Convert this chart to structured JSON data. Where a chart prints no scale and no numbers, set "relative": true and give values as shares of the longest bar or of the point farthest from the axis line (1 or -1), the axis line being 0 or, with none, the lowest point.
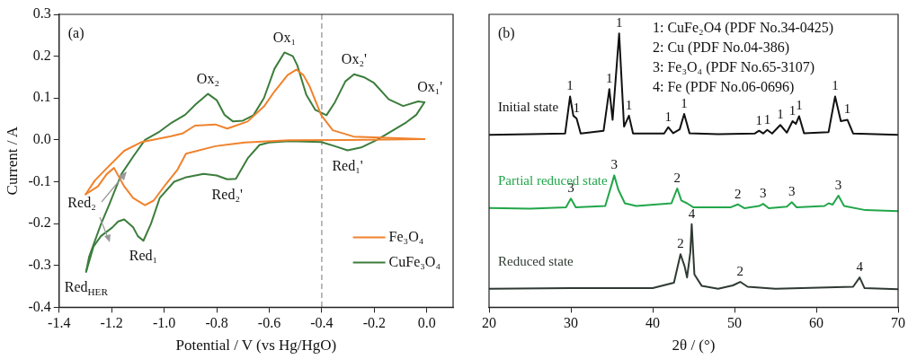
{
  "chart_data": [
    {
      "type": "line",
      "xlabel": "Potential / V (vs Hg/HgO)",
      "ylabel": "Current / A",
      "xlim": [
        -1.4,
        0.1
      ],
      "ylim": [
        -0.4,
        0.3
      ],
      "xticks": [
        -1.4,
        -1.2,
        {
          "value": -1,
          "label": "-1.0"
        },
        -0.8,
        -0.6,
        -0.4,
        -0.2,
        {
          "value": 0,
          "label": "0.0"
        }
      ],
      "yticks": [
        -0.4,
        -0.3,
        -0.2,
        -0.1,
        {
          "value": 0,
          "label": "0.0"
        },
        0.1,
        0.2,
        0.3
      ],
      "grid": false,
      "legend": "bottom right",
      "line_style": "solid",
      "marker": "none",
      "ref_lines": [
        {
          "axis": "x",
          "value": -0.4,
          "color": "#8c8c8c",
          "line_style": "dashed"
        }
      ],
      "series": [
        {
          "name": "Fe₃O₄",
          "color": "#f0822c",
          "x": [
            -1.299,
            -1.264,
            -1.219,
            -1.152,
            -1.085,
            -0.973,
            -0.928,
            -0.883,
            -0.805,
            -0.76,
            -0.682,
            -0.62,
            -0.581,
            -0.53,
            -0.497,
            -0.47,
            -0.447,
            -0.402,
            -0.358,
            -0.279,
            -0.009
          ],
          "values": [
            -0.13,
            -0.097,
            -0.068,
            -0.026,
            -0.005,
            0.009,
            0.016,
            0.034,
            0.037,
            0.027,
            0.044,
            0.08,
            0.115,
            0.155,
            0.168,
            0.155,
            0.129,
            0.059,
            0.023,
            0.008,
            0.002
          ]
        },
        {
          "color": "#f0822c",
          "x": [
            -1.299,
            -1.252,
            -1.219,
            -1.191,
            -1.152,
            -1.118,
            -1.073,
            -1.04,
            -0.995,
            -0.95,
            -0.917,
            -0.805,
            -0.693,
            -0.525,
            -0.302,
            -0.009
          ],
          "values": [
            -0.13,
            -0.111,
            -0.082,
            -0.067,
            -0.111,
            -0.139,
            -0.156,
            -0.145,
            -0.107,
            -0.072,
            -0.033,
            -0.015,
            -0.006,
            -0.001,
            0,
            0.002
          ]
        },
        {
          "name": "CuFe₃O₄",
          "color": "#3c7d3c",
          "x": [
            -1.297,
            -1.286,
            -1.241,
            -1.208,
            -1.163,
            -1.118,
            -1.073,
            -1.017,
            -0.972,
            -0.92,
            -0.88,
            -0.833,
            -0.8,
            -0.77,
            -0.738,
            -0.7,
            -0.66,
            -0.62,
            -0.58,
            -0.542,
            -0.51,
            -0.493,
            -0.459,
            -0.425,
            -0.382,
            -0.35,
            -0.31,
            -0.277,
            -0.24,
            -0.201,
            -0.145,
            -0.09,
            -0.033,
            -0.009
          ],
          "values": [
            -0.315,
            -0.28,
            -0.202,
            -0.153,
            -0.082,
            -0.04,
            0,
            0.02,
            0.041,
            0.06,
            0.085,
            0.11,
            0.095,
            0.06,
            0.044,
            0.046,
            0.059,
            0.1,
            0.17,
            0.209,
            0.2,
            0.178,
            0.108,
            0.072,
            0.059,
            0.09,
            0.14,
            0.157,
            0.15,
            0.136,
            0.097,
            0.081,
            0.092,
            0.09
          ]
        },
        {
          "color": "#3c7d3c",
          "x": [
            -1.297,
            -1.269,
            -1.241,
            -1.197,
            -1.175,
            -1.152,
            -1.118,
            -1.1,
            -1.079,
            -1.05,
            -1.017,
            -0.962,
            -0.92,
            -0.85,
            -0.8,
            -0.76,
            -0.727,
            -0.682,
            -0.637,
            -0.6,
            -0.525,
            -0.402,
            -0.35,
            -0.302,
            -0.25,
            -0.19,
            -0.078,
            -0.04,
            -0.009
          ],
          "values": [
            -0.315,
            -0.255,
            -0.23,
            -0.209,
            -0.195,
            -0.19,
            -0.209,
            -0.23,
            -0.241,
            -0.2,
            -0.139,
            -0.1,
            -0.09,
            -0.081,
            -0.085,
            -0.094,
            -0.093,
            -0.044,
            -0.012,
            -0.006,
            -0.003,
            -0.005,
            -0.015,
            -0.025,
            -0.018,
            0,
            0.042,
            0.06,
            0.09
          ]
        }
      ],
      "annotations": [
        "(a)",
        "Red₂",
        {
          "text": "Ox₁",
          "x": -0.542,
          "y": 0.209
        },
        {
          "text": "Ox₂",
          "x": -0.833,
          "y": 0.11
        },
        {
          "text": "Ox₂'",
          "x": -0.277,
          "y": 0.157
        },
        {
          "text": "Ox₁'",
          "x": -0.009,
          "y": 0.09
        },
        {
          "text": "Red₁'",
          "x": -0.302,
          "y": -0.025
        },
        {
          "text": "Red₂'",
          "x": -0.76,
          "y": -0.094
        },
        {
          "text": "Red₁",
          "x": -1.079,
          "y": -0.241
        },
        {
          "text": "Red$_{HER}$",
          "x": -1.297,
          "y": -0.315
        }
      ]
    },
    {
      "type": "line",
      "relative": true,
      "xlabel": "2θ / (°)",
      "xlim": [
        20,
        70
      ],
      "xticks": [
        20,
        30,
        40,
        50,
        60,
        70
      ],
      "grid": false,
      "legend": false,
      "line_style": "solid",
      "marker": "none",
      "series": [
        {
          "name": "Initial state",
          "color": "#111111",
          "x": [
            20,
            25,
            29.3,
            29.9,
            30.3,
            30.7,
            31.2,
            34.0,
            34.7,
            35.1,
            35.9,
            36.5,
            37.1,
            37.6,
            41.4,
            41.9,
            42.5,
            43.3,
            43.85,
            44.5,
            48,
            52.5,
            53.0,
            53.5,
            54.0,
            54.6,
            55.6,
            56.4,
            57.1,
            57.5,
            57.9,
            58.5,
            61.5,
            62.3,
            63.0,
            63.8,
            64.5,
            70
          ],
          "values": [
            0.63,
            0.632,
            0.635,
            0.77,
            0.7,
            0.69,
            0.635,
            0.645,
            0.797,
            0.685,
            1.0,
            0.66,
            0.7,
            0.635,
            0.635,
            0.658,
            0.636,
            0.65,
            0.706,
            0.636,
            0.632,
            0.635,
            0.645,
            0.635,
            0.648,
            0.635,
            0.666,
            0.638,
            0.68,
            0.67,
            0.698,
            0.636,
            0.64,
            0.77,
            0.68,
            0.685,
            0.635,
            0.63
          ]
        },
        {
          "name": "Partial reduced state",
          "color": "#22a64a",
          "x": [
            20,
            25,
            29.4,
            30.0,
            30.6,
            34.2,
            35.0,
            35.3,
            35.8,
            36.6,
            38,
            42.3,
            43.0,
            43.5,
            44.2,
            45,
            49.5,
            50.4,
            51.2,
            53.0,
            53.5,
            54.2,
            56.4,
            57.0,
            57.6,
            61.0,
            61.5,
            62.0,
            62.7,
            63.4,
            66,
            70
          ],
          "values": [
            0.363,
            0.36,
            0.365,
            0.397,
            0.365,
            0.37,
            0.45,
            0.482,
            0.43,
            0.38,
            0.37,
            0.38,
            0.434,
            0.39,
            0.38,
            0.365,
            0.365,
            0.376,
            0.362,
            0.37,
            0.378,
            0.362,
            0.368,
            0.384,
            0.365,
            0.37,
            0.38,
            0.375,
            0.408,
            0.37,
            0.355,
            0.351
          ]
        },
        {
          "name": "Reduced state",
          "color": "#2f3a33",
          "x": [
            20,
            30,
            40,
            42.6,
            43.4,
            43.9,
            44.2,
            44.6,
            44.77,
            45.1,
            46,
            48,
            49.8,
            50.7,
            51.6,
            55,
            64.5,
            65.3,
            65.9,
            70
          ],
          "values": [
            0.068,
            0.07,
            0.07,
            0.09,
            0.194,
            0.15,
            0.109,
            0.2,
            0.304,
            0.12,
            0.078,
            0.068,
            0.08,
            0.093,
            0.075,
            0.068,
            0.075,
            0.109,
            0.07,
            0.066
          ]
        }
      ],
      "annotations": [
        "(b)",
        "1: CuFe₂O4 (PDF No.34-0425)",
        "2: Cu (PDF No.04-386)",
        "3: Fe₃O₄ (PDF No.65-3107)",
        "4: Fe (PDF No.06-0696)",
        {
          "text": "1",
          "x": 29.9,
          "y": 0.77
        },
        {
          "text": "1",
          "x": 30.7,
          "y": 0.69
        },
        {
          "text": "1",
          "x": 34.7,
          "y": 0.797
        },
        {
          "text": "1",
          "x": 35.9,
          "y": 1.0
        },
        {
          "text": "1",
          "x": 37.1,
          "y": 0.7
        },
        {
          "text": "1",
          "x": 41.9,
          "y": 0.658
        },
        {
          "text": "1",
          "x": 43.85,
          "y": 0.706
        },
        {
          "text": "1",
          "x": 53.0,
          "y": 0.645
        },
        {
          "text": "1",
          "x": 54.0,
          "y": 0.648
        },
        {
          "text": "1",
          "x": 55.6,
          "y": 0.666
        },
        {
          "text": "1",
          "x": 57.1,
          "y": 0.68
        },
        {
          "text": "1",
          "x": 57.9,
          "y": 0.698
        },
        {
          "text": "1",
          "x": 62.3,
          "y": 0.77
        },
        {
          "text": "1",
          "x": 63.8,
          "y": 0.685
        },
        {
          "text": "3",
          "x": 30.0,
          "y": 0.397
        },
        {
          "text": "3",
          "x": 35.3,
          "y": 0.482
        },
        {
          "text": "2",
          "x": 43.0,
          "y": 0.434
        },
        {
          "text": "2",
          "x": 50.4,
          "y": 0.376
        },
        {
          "text": "3",
          "x": 53.5,
          "y": 0.378
        },
        {
          "text": "3",
          "x": 57.0,
          "y": 0.384
        },
        {
          "text": "3",
          "x": 62.7,
          "y": 0.408
        },
        {
          "text": "2",
          "x": 43.4,
          "y": 0.194
        },
        {
          "text": "4",
          "x": 44.77,
          "y": 0.304
        },
        {
          "text": "2",
          "x": 50.7,
          "y": 0.093
        },
        {
          "text": "4",
          "x": 65.3,
          "y": 0.109
        }
      ]
    }
  ]
}
